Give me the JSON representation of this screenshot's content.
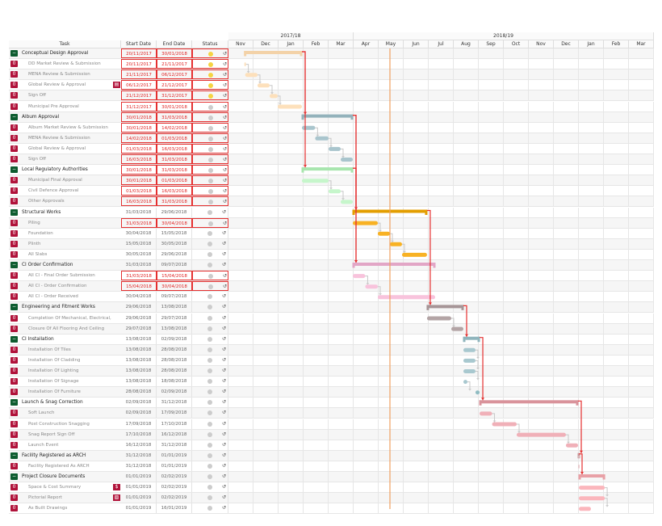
{
  "header": {
    "task": "Task",
    "start": "Start  Date",
    "end": "End  Date",
    "status": "Status"
  },
  "years": [
    {
      "label": "2017/18",
      "months": 5
    },
    {
      "label": "2018/19",
      "months": 12
    }
  ],
  "months": [
    "Nov",
    "Dec",
    "Jan",
    "Feb",
    "Mar",
    "Apr",
    "May",
    "Jun",
    "Jul",
    "Aug",
    "Sep",
    "Oct",
    "Nov",
    "Dec",
    "Jan",
    "Feb",
    "Mar"
  ],
  "today_marker": "15/05/2018",
  "colors": {
    "critical": "#e53030",
    "today": "#f0a060",
    "toggle_group": "#0d5c2f",
    "toggle_child": "#b0123a",
    "status_active": "#f5d442",
    "status_idle": "#cccccc"
  },
  "rows": [
    {
      "name": "Conceptual   Design   Approval",
      "group": true,
      "start": "20/11/2017",
      "end": "30/01/2018",
      "crit": true,
      "status": "active",
      "bar": "#f3d2a8"
    },
    {
      "name": "DD Market Review & Submission",
      "start": "20/11/2017",
      "end": "21/11/2017",
      "crit": true,
      "status": "active",
      "bar": "#fde0bb"
    },
    {
      "name": "MENA Review & Submission",
      "start": "21/11/2017",
      "end": "06/12/2017",
      "crit": true,
      "status": "active",
      "bar": "#fde0bb"
    },
    {
      "name": "Global Review & Approval",
      "start": "06/12/2017",
      "end": "21/12/2017",
      "crit": true,
      "status": "active",
      "icon": "document-icon",
      "icon_glyph": "▤",
      "bar": "#fde0bb"
    },
    {
      "name": "Sign Off",
      "start": "21/12/2017",
      "end": "31/12/2017",
      "crit": true,
      "status": "active",
      "bar": "#fde0bb"
    },
    {
      "name": "Municipal Pre Approval",
      "start": "31/12/2017",
      "end": "30/01/2018",
      "crit": true,
      "status": "idle",
      "bar": "#fde0bb"
    },
    {
      "name": "Album   Approval",
      "group": true,
      "start": "30/01/2018",
      "end": "31/03/2018",
      "crit": true,
      "status": "idle",
      "bar": "#93b2bb"
    },
    {
      "name": "Album Market Review & Submission",
      "start": "30/01/2018",
      "end": "14/02/2018",
      "crit": true,
      "status": "idle",
      "bar": "#a9c5cd"
    },
    {
      "name": "MENA Review & Submission",
      "start": "14/02/2018",
      "end": "01/03/2018",
      "crit": true,
      "status": "idle",
      "bar": "#a9c5cd"
    },
    {
      "name": "Global Review & Approval",
      "start": "01/03/2018",
      "end": "16/03/2018",
      "crit": true,
      "status": "idle",
      "bar": "#a9c5cd"
    },
    {
      "name": "Sign Off",
      "start": "16/03/2018",
      "end": "31/03/2018",
      "crit": true,
      "status": "idle",
      "bar": "#a9c5cd"
    },
    {
      "name": "Local   Regulatory   Authorities",
      "group": true,
      "start": "30/01/2018",
      "end": "31/03/2018",
      "crit": true,
      "status": "idle",
      "bar": "#a8e6ae"
    },
    {
      "name": "Municipal Final Approval",
      "start": "30/01/2018",
      "end": "01/03/2018",
      "crit": true,
      "status": "idle",
      "bar": "#c6f6cb"
    },
    {
      "name": "Civil Defence Approval",
      "start": "01/03/2018",
      "end": "16/03/2018",
      "crit": true,
      "status": "idle",
      "bar": "#c6f6cb"
    },
    {
      "name": "Other Approvals",
      "start": "16/03/2018",
      "end": "31/03/2018",
      "crit": true,
      "status": "idle",
      "bar": "#c6f6cb"
    },
    {
      "name": "Structural    Works",
      "group": true,
      "start": "31/03/2018",
      "end": "29/06/2018",
      "status": "idle",
      "bar": "#e39e00"
    },
    {
      "name": "Piling",
      "start": "31/03/2018",
      "end": "30/04/2018",
      "crit": true,
      "status": "idle",
      "bar": "#f8b224"
    },
    {
      "name": "Foundation",
      "start": "30/04/2018",
      "end": "15/05/2018",
      "status": "idle",
      "bar": "#f8b224"
    },
    {
      "name": "Plinth",
      "start": "15/05/2018",
      "end": "30/05/2018",
      "status": "idle",
      "bar": "#f8b224"
    },
    {
      "name": "All Slabs",
      "start": "30/05/2018",
      "end": "29/06/2018",
      "status": "idle",
      "bar": "#f8b224"
    },
    {
      "name": "CI  Order   Confirmation",
      "group": true,
      "start": "31/03/2018",
      "end": "09/07/2018",
      "status": "idle",
      "bar": "#e2a6c6"
    },
    {
      "name": "All CI - Final Order Submission",
      "start": "31/03/2018",
      "end": "15/04/2018",
      "crit": true,
      "status": "idle",
      "bar": "#f8c3dc"
    },
    {
      "name": "All CI - Order Confirmation",
      "start": "15/04/2018",
      "end": "30/04/2018",
      "crit": true,
      "status": "idle",
      "bar": "#f8c3dc"
    },
    {
      "name": "All CI - Order Received",
      "start": "30/04/2018",
      "end": "09/07/2018",
      "status": "idle",
      "bar": "#f8c3dc"
    },
    {
      "name": "Engineering     and   Fitment   Works",
      "group": true,
      "start": "29/06/2018",
      "end": "13/08/2018",
      "status": "idle",
      "bar": "#a69597"
    },
    {
      "name": "Completion  Of  Mechanical,  Electrical,",
      "start": "29/06/2018",
      "end": "29/07/2018",
      "status": "idle",
      "bar": "#b3a4a5"
    },
    {
      "name": "Closure  Of All  Flooring  And  Ceiling",
      "start": "29/07/2018",
      "end": "13/08/2018",
      "status": "idle",
      "bar": "#b3a4a5"
    },
    {
      "name": "CI  Installation",
      "group": true,
      "start": "13/08/2018",
      "end": "02/09/2018",
      "status": "idle",
      "bar": "#8fb5bd"
    },
    {
      "name": "Installation  Of Tiles",
      "start": "13/08/2018",
      "end": "28/08/2018",
      "status": "idle",
      "bar": "#a8c8cf"
    },
    {
      "name": "Installation  Of Cladding",
      "start": "13/08/2018",
      "end": "28/08/2018",
      "status": "idle",
      "bar": "#a8c8cf"
    },
    {
      "name": "Installation  Of Lighting",
      "start": "13/08/2018",
      "end": "28/08/2018",
      "status": "idle",
      "bar": "#a8c8cf"
    },
    {
      "name": "Installation  Of Signage",
      "start": "13/08/2018",
      "end": "18/08/2018",
      "status": "idle",
      "bar": "#a8c8cf"
    },
    {
      "name": "Installation  Of Furniture",
      "start": "28/08/2018",
      "end": "02/09/2018",
      "status": "idle",
      "bar": "#8fbcc2"
    },
    {
      "name": "Launch   & Snag  Correction",
      "group": true,
      "start": "02/09/2018",
      "end": "31/12/2018",
      "status": "idle",
      "bar": "#d9939b"
    },
    {
      "name": "Soft Launch",
      "start": "02/09/2018",
      "end": "17/09/2018",
      "status": "idle",
      "bar": "#f0b0b8"
    },
    {
      "name": "Post Construction  Snagging",
      "start": "17/09/2018",
      "end": "17/10/2018",
      "status": "idle",
      "bar": "#f0b0b8"
    },
    {
      "name": "Snag Report Sign Off",
      "start": "17/10/2018",
      "end": "16/12/2018",
      "status": "idle",
      "bar": "#f0b0b8"
    },
    {
      "name": "Launch Event",
      "start": "16/12/2018",
      "end": "31/12/2018",
      "status": "idle",
      "bar": "#f0b0b8"
    },
    {
      "name": "Facility    Registered      as  ARCH",
      "group": true,
      "start": "31/12/2018",
      "end": "01/01/2019",
      "status": "idle",
      "bar": "#c99ca0"
    },
    {
      "name": "Facility  Registered  As  ARCH",
      "start": "31/12/2018",
      "end": "01/01/2019",
      "status": "idle",
      "bar": "#e8c8cb"
    },
    {
      "name": "Project    Closure    Documents",
      "group": true,
      "start": "01/01/2019",
      "end": "02/02/2019",
      "status": "idle",
      "bar": "#e8a0a6"
    },
    {
      "name": "Space & Cost Summary",
      "start": "01/01/2019",
      "end": "02/02/2019",
      "status": "idle",
      "icon": "dollar-icon",
      "icon_glyph": "$",
      "bar": "#fbb6bc"
    },
    {
      "name": "Pictorial  Report",
      "start": "01/01/2019",
      "end": "02/02/2019",
      "status": "idle",
      "icon": "image-icon",
      "icon_glyph": "▨",
      "bar": "#fbb6bc"
    },
    {
      "name": "As Built Drawings",
      "start": "01/01/2019",
      "end": "16/01/2019",
      "status": "idle",
      "bar": "#fbb6bc"
    }
  ]
}
